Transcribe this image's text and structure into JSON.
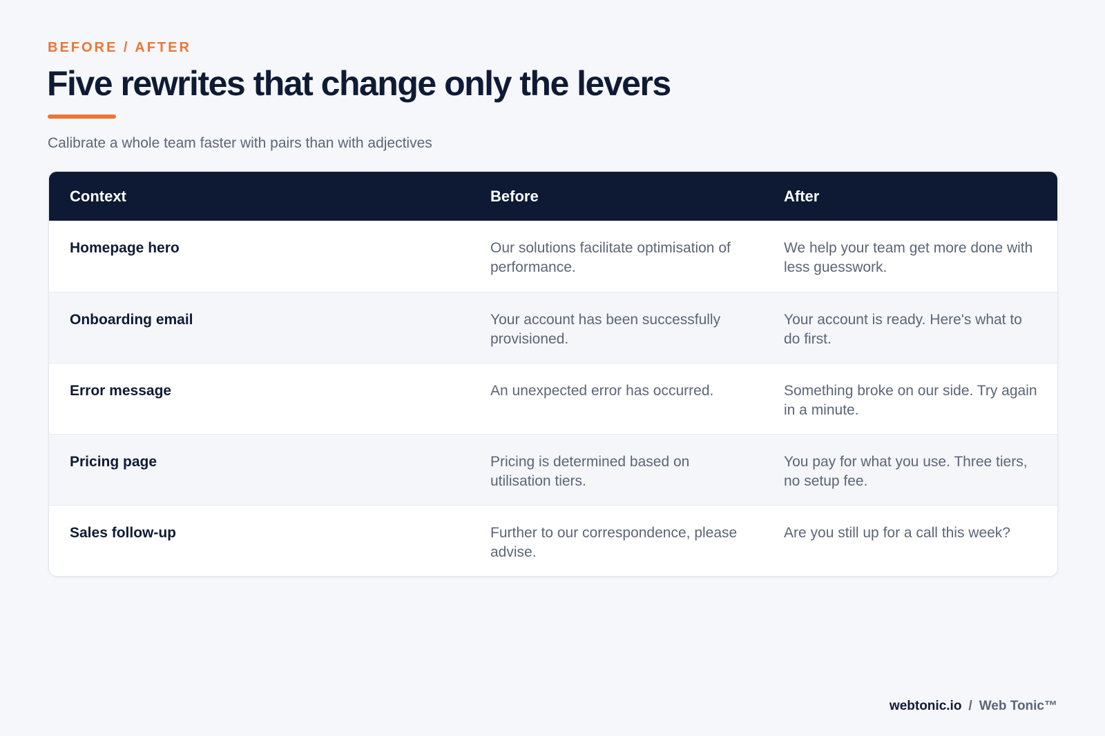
{
  "header": {
    "eyebrow": "BEFORE / AFTER",
    "title": "Five rewrites that change only the levers",
    "subtitle": "Calibrate a whole team faster with pairs than with adjectives"
  },
  "table": {
    "columns": [
      "Context",
      "Before",
      "After"
    ],
    "rows": [
      {
        "context": "Homepage hero",
        "before": "Our solutions facilitate optimisation of performance.",
        "after": "We help your team get more done with less guesswork."
      },
      {
        "context": "Onboarding email",
        "before": "Your account has been successfully provisioned.",
        "after": "Your account is ready. Here's what to do first."
      },
      {
        "context": "Error message",
        "before": "An unexpected error has occurred.",
        "after": "Something broke on our side. Try again in a minute."
      },
      {
        "context": "Pricing page",
        "before": "Pricing is determined based on utilisation tiers.",
        "after": "You pay for what you use. Three tiers, no setup fee."
      },
      {
        "context": "Sales follow-up",
        "before": "Further to our correspondence, please advise.",
        "after": "Are you still up for a call this week?"
      }
    ]
  },
  "footer": {
    "site": "webtonic.io",
    "separator": "/",
    "brand": "Web Tonic™"
  },
  "colors": {
    "accent": "#ee7434",
    "navy": "#0e1a33",
    "background": "#f5f7fa",
    "muted_text": "#5b6577"
  }
}
